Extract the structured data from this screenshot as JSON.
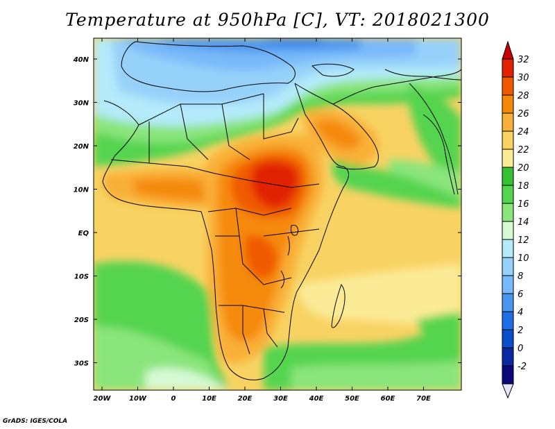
{
  "title": "Temperature at 950hPa [C], VT: 2018021300",
  "footer": "GrADS: IGES/COLA",
  "map": {
    "region": "Africa and Arabian Peninsula",
    "variable": "Temperature",
    "level": "950hPa",
    "units": "C",
    "valid_time": "2018021300",
    "lat_labels": [
      "40N",
      "30N",
      "20N",
      "10N",
      "EQ",
      "10S",
      "20S",
      "30S"
    ],
    "lon_labels": [
      "20W",
      "10W",
      "0",
      "10E",
      "20E",
      "30E",
      "40E",
      "50E",
      "60E",
      "70E"
    ]
  },
  "colorbar": {
    "labels": [
      "32",
      "30",
      "28",
      "26",
      "24",
      "22",
      "20",
      "18",
      "16",
      "14",
      "12",
      "10",
      "8",
      "6",
      "4",
      "2",
      "0",
      "-2"
    ],
    "colors": [
      "#e12200",
      "#f05a00",
      "#f58a0a",
      "#f9b038",
      "#f8d363",
      "#fbeb97",
      "#35c131",
      "#54d44f",
      "#8ae57b",
      "#d5f9d3",
      "#b4eafa",
      "#96d1fa",
      "#78b9fa",
      "#4b97f0",
      "#1e6ee6",
      "#0a4fc9",
      "#0a28a2"
    ],
    "min_arrow_color": "#0a0a78",
    "max_arrow_color": "#c80000",
    "below_arrow_color": "#e6e6fa"
  }
}
